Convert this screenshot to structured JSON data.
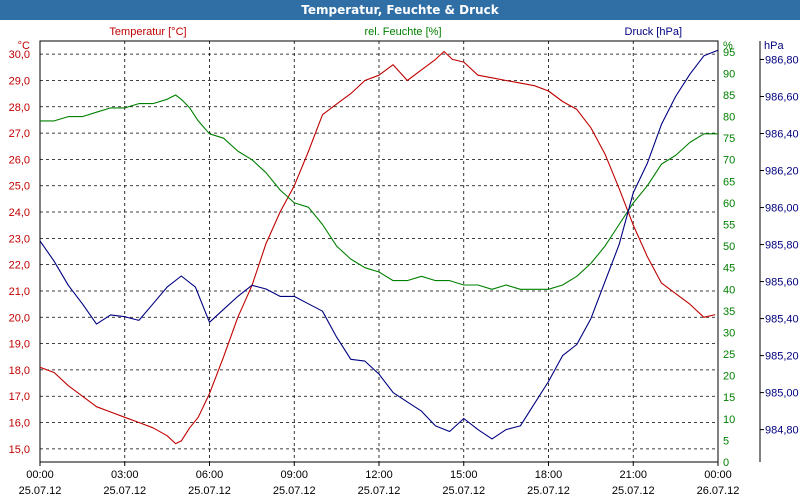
{
  "chart_data": {
    "type": "line",
    "title": "Temperatur, Feuchte & Druck",
    "x_ticks": [
      {
        "time": "00:00",
        "date": "25.07.12"
      },
      {
        "time": "03:00",
        "date": "25.07.12"
      },
      {
        "time": "06:00",
        "date": "25.07.12"
      },
      {
        "time": "09:00",
        "date": "25.07.12"
      },
      {
        "time": "12:00",
        "date": "25.07.12"
      },
      {
        "time": "15:00",
        "date": "25.07.12"
      },
      {
        "time": "18:00",
        "date": "25.07.12"
      },
      {
        "time": "21:00",
        "date": "25.07.12"
      },
      {
        "time": "00:00",
        "date": "26.07.12"
      }
    ],
    "x_range_hours": [
      0,
      24
    ],
    "axes": {
      "temperature": {
        "label": "Temperatur [°C]",
        "unit": "°C",
        "color": "#c00000",
        "range": [
          14.5,
          30.5
        ],
        "ticks": [
          "15,0",
          "16,0",
          "17,0",
          "18,0",
          "19,0",
          "20,0",
          "21,0",
          "22,0",
          "23,0",
          "24,0",
          "25,0",
          "26,0",
          "27,0",
          "28,0",
          "29,0",
          "30,0"
        ],
        "tick_values": [
          15,
          16,
          17,
          18,
          19,
          20,
          21,
          22,
          23,
          24,
          25,
          26,
          27,
          28,
          29,
          30
        ]
      },
      "humidity": {
        "label": "rel. Feuchte [%]",
        "unit": "%",
        "color": "#008000",
        "range": [
          0,
          97.5
        ],
        "ticks": [
          "0",
          "5",
          "10",
          "15",
          "20",
          "25",
          "30",
          "35",
          "40",
          "45",
          "50",
          "55",
          "60",
          "65",
          "70",
          "75",
          "80",
          "85",
          "90",
          "95"
        ],
        "tick_values": [
          0,
          5,
          10,
          15,
          20,
          25,
          30,
          35,
          40,
          45,
          50,
          55,
          60,
          65,
          70,
          75,
          80,
          85,
          90,
          95
        ]
      },
      "pressure": {
        "label": "Druck [hPa]",
        "unit": "hPa",
        "color": "#000080",
        "range": [
          984.625,
          986.9
        ],
        "ticks": [
          "984,80",
          "985,00",
          "985,20",
          "985,40",
          "985,60",
          "985,80",
          "986,00",
          "986,20",
          "986,40",
          "986,60",
          "986,80"
        ],
        "tick_values": [
          984.8,
          985.0,
          985.2,
          985.4,
          985.6,
          985.8,
          986.0,
          986.2,
          986.4,
          986.6,
          986.8
        ]
      }
    },
    "series": [
      {
        "name": "Temperatur",
        "axis": "temperature",
        "x": [
          0,
          0.5,
          1,
          1.5,
          2,
          2.5,
          3,
          3.5,
          4,
          4.5,
          4.8,
          5,
          5.3,
          5.6,
          6,
          6.5,
          7,
          7.5,
          8,
          8.5,
          9,
          9.5,
          10,
          10.5,
          11,
          11.5,
          12,
          12.5,
          13,
          13.5,
          14,
          14.3,
          14.6,
          15,
          15.5,
          16,
          16.5,
          17,
          17.5,
          18,
          18.5,
          19,
          19.5,
          20,
          20.5,
          21,
          21.5,
          22,
          22.5,
          23,
          23.5,
          23.9
        ],
        "values": [
          18.1,
          17.9,
          17.4,
          17.0,
          16.6,
          16.4,
          16.2,
          16.0,
          15.8,
          15.5,
          15.2,
          15.3,
          15.8,
          16.2,
          17.1,
          18.5,
          20.0,
          21.2,
          22.8,
          24.0,
          25.0,
          26.3,
          27.7,
          28.1,
          28.5,
          29.0,
          29.2,
          29.6,
          29.0,
          29.4,
          29.8,
          30.1,
          29.8,
          29.7,
          29.2,
          29.1,
          29.0,
          28.9,
          28.8,
          28.6,
          28.2,
          27.9,
          27.2,
          26.2,
          24.9,
          23.5,
          22.3,
          21.3,
          20.9,
          20.5,
          20.0,
          20.1
        ]
      },
      {
        "name": "rel. Feuchte",
        "axis": "humidity",
        "x": [
          0,
          0.5,
          1,
          1.5,
          2,
          2.5,
          3,
          3.5,
          4,
          4.5,
          4.8,
          5,
          5.3,
          5.6,
          6,
          6.5,
          7,
          7.5,
          8,
          8.5,
          9,
          9.5,
          10,
          10.5,
          11,
          11.5,
          12,
          12.5,
          13,
          13.5,
          14,
          14.5,
          15,
          15.5,
          16,
          16.5,
          17,
          17.5,
          18,
          18.5,
          19,
          19.5,
          20,
          20.5,
          21,
          21.5,
          22,
          22.5,
          23,
          23.5,
          24
        ],
        "values": [
          79,
          79,
          80,
          80,
          81,
          82,
          82,
          83,
          83,
          84,
          85,
          84,
          82,
          79,
          76,
          75,
          72,
          70,
          67,
          63,
          60,
          59,
          55,
          50,
          47,
          45,
          44,
          42,
          42,
          43,
          42,
          42,
          41,
          41,
          40,
          41,
          40,
          40,
          40,
          41,
          43,
          46,
          50,
          55,
          60,
          64,
          69,
          71,
          74,
          76,
          76
        ]
      },
      {
        "name": "Druck",
        "axis": "pressure",
        "x": [
          0,
          0.5,
          1,
          1.5,
          2,
          2.5,
          3,
          3.5,
          4,
          4.5,
          5,
          5.5,
          6,
          6.5,
          7,
          7.5,
          8,
          8.5,
          9,
          9.5,
          10,
          10.5,
          11,
          11.5,
          12,
          12.5,
          13,
          13.5,
          14,
          14.5,
          15,
          15.5,
          16,
          16.5,
          17,
          17.5,
          18,
          18.5,
          19,
          19.5,
          20,
          20.5,
          21,
          21.5,
          22,
          22.5,
          23,
          23.5,
          24
        ],
        "values": [
          985.82,
          985.71,
          985.58,
          985.48,
          985.37,
          985.42,
          985.41,
          985.39,
          985.48,
          985.57,
          985.63,
          985.57,
          985.38,
          985.45,
          985.52,
          985.58,
          985.56,
          985.52,
          985.52,
          985.48,
          985.44,
          985.3,
          985.18,
          985.17,
          985.1,
          985.0,
          984.95,
          984.9,
          984.82,
          984.79,
          984.86,
          984.8,
          984.75,
          984.8,
          984.82,
          984.94,
          985.06,
          985.2,
          985.26,
          985.4,
          985.6,
          985.8,
          986.08,
          986.24,
          986.45,
          986.6,
          986.72,
          986.82,
          986.85
        ]
      }
    ]
  }
}
